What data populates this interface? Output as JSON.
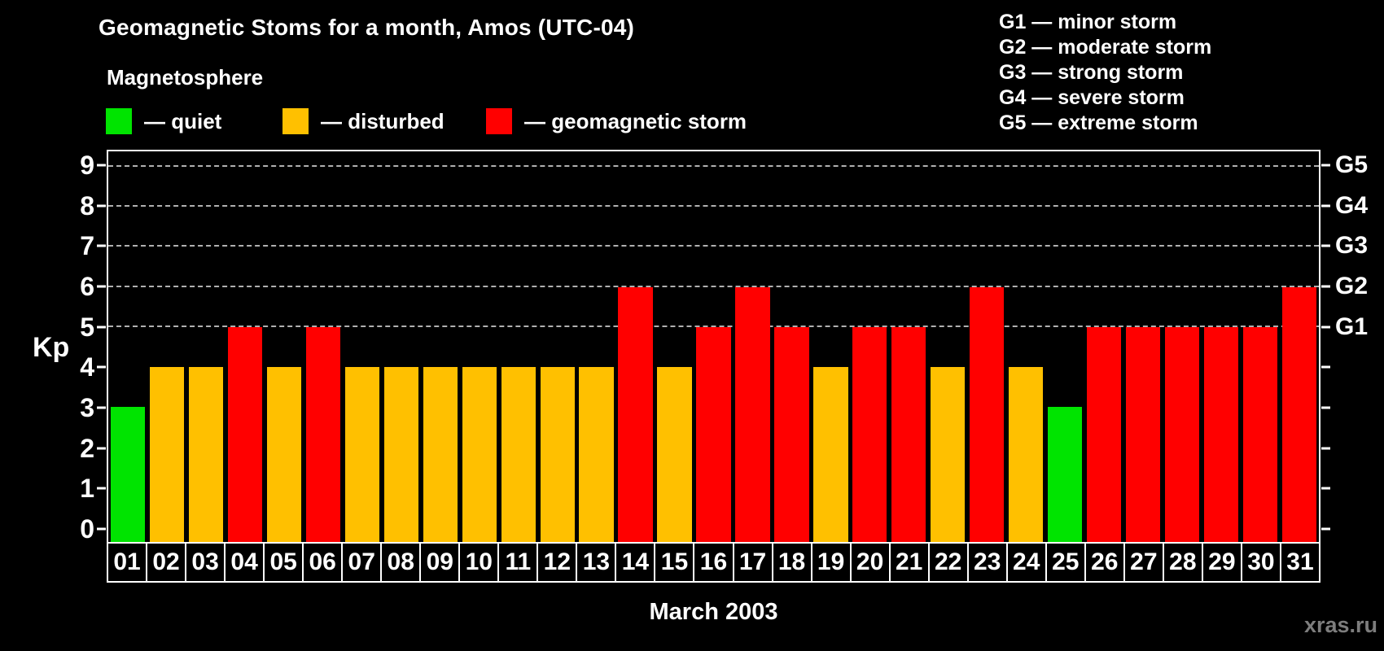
{
  "title": "Geomagnetic Stoms for a month, Amos (UTC-04)",
  "subtitle": "Magnetosphere",
  "legend": {
    "items": [
      {
        "key": "quiet",
        "label": "— quiet",
        "color": "#00e400"
      },
      {
        "key": "disturbed",
        "label": "— disturbed",
        "color": "#ffc000"
      },
      {
        "key": "storm",
        "label": "— geomagnetic storm",
        "color": "#ff0000"
      }
    ]
  },
  "g_scale": [
    "G1 — minor storm",
    "G2 — moderate storm",
    "G3 — strong storm",
    "G4 — severe storm",
    "G5 — extreme storm"
  ],
  "watermark": "xras.ru",
  "chart_data": {
    "type": "bar",
    "title": "Geomagnetic Stoms for a month, Amos (UTC-04)",
    "subtitle": "Magnetosphere",
    "xlabel": "March 2003",
    "ylabel": "Kp",
    "ylim": [
      0,
      9
    ],
    "y_ticks": [
      0,
      1,
      2,
      3,
      4,
      5,
      6,
      7,
      8,
      9
    ],
    "gridlines_at": [
      5,
      6,
      7,
      8,
      9
    ],
    "grid": "dashed horizontal",
    "legend_position": "top-left",
    "categories": [
      "01",
      "02",
      "03",
      "04",
      "05",
      "06",
      "07",
      "08",
      "09",
      "10",
      "11",
      "12",
      "13",
      "14",
      "15",
      "16",
      "17",
      "18",
      "19",
      "20",
      "21",
      "22",
      "23",
      "24",
      "25",
      "26",
      "27",
      "28",
      "29",
      "30",
      "31"
    ],
    "values": [
      3,
      4,
      4,
      5,
      4,
      5,
      4,
      4,
      4,
      4,
      4,
      4,
      4,
      6,
      4,
      5,
      6,
      5,
      4,
      5,
      5,
      4,
      6,
      4,
      3,
      5,
      5,
      5,
      5,
      5,
      6
    ],
    "statuses": [
      "quiet",
      "disturbed",
      "disturbed",
      "storm",
      "disturbed",
      "storm",
      "disturbed",
      "disturbed",
      "disturbed",
      "disturbed",
      "disturbed",
      "disturbed",
      "disturbed",
      "storm",
      "disturbed",
      "storm",
      "storm",
      "storm",
      "disturbed",
      "storm",
      "storm",
      "disturbed",
      "storm",
      "disturbed",
      "quiet",
      "storm",
      "storm",
      "storm",
      "storm",
      "storm",
      "storm"
    ],
    "color_map": {
      "quiet": "#00e400",
      "disturbed": "#ffc000",
      "storm": "#ff0000"
    },
    "right_axis_labels": [
      {
        "kp": 5,
        "label": "G1"
      },
      {
        "kp": 6,
        "label": "G2"
      },
      {
        "kp": 7,
        "label": "G3"
      },
      {
        "kp": 8,
        "label": "G4"
      },
      {
        "kp": 9,
        "label": "G5"
      }
    ]
  }
}
